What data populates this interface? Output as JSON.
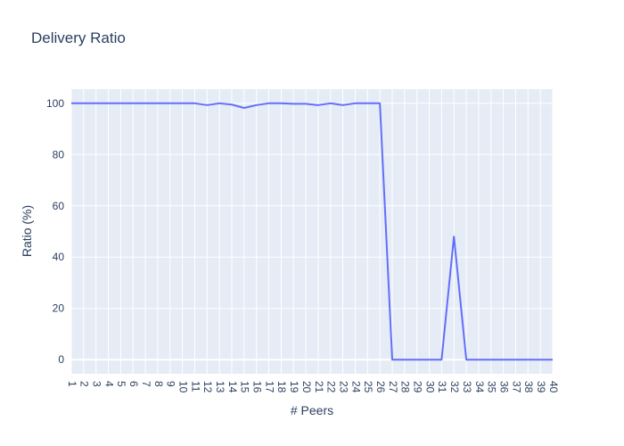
{
  "chart_data": {
    "type": "line",
    "title": "Delivery Ratio",
    "xlabel": "# Peers",
    "ylabel": "Ratio (%)",
    "x": [
      1,
      2,
      3,
      4,
      5,
      6,
      7,
      8,
      9,
      10,
      11,
      12,
      13,
      14,
      15,
      16,
      17,
      18,
      19,
      20,
      21,
      22,
      23,
      24,
      25,
      26,
      27,
      28,
      29,
      30,
      31,
      32,
      33,
      34,
      35,
      36,
      37,
      38,
      39,
      40
    ],
    "series": [
      {
        "name": "",
        "values": [
          100,
          100,
          100,
          100,
          100,
          100,
          100,
          100,
          100,
          100,
          100,
          99.3,
          100,
          99.5,
          98.2,
          99.3,
          100,
          100,
          99.8,
          99.8,
          99.3,
          100,
          99.3,
          100,
          100,
          100,
          0,
          0,
          0,
          0,
          0,
          48,
          0,
          0,
          0,
          0,
          0,
          0,
          0,
          0
        ]
      }
    ],
    "yticks": [
      0,
      20,
      40,
      60,
      80,
      100
    ],
    "ylim": [
      -5.5,
      105.5
    ],
    "xlim": [
      1,
      40
    ],
    "grid": true,
    "colors": {
      "plot_bg": "#e5ecf6",
      "grid": "#ffffff",
      "line": "#636efa",
      "text": "#2a3f5f"
    }
  }
}
